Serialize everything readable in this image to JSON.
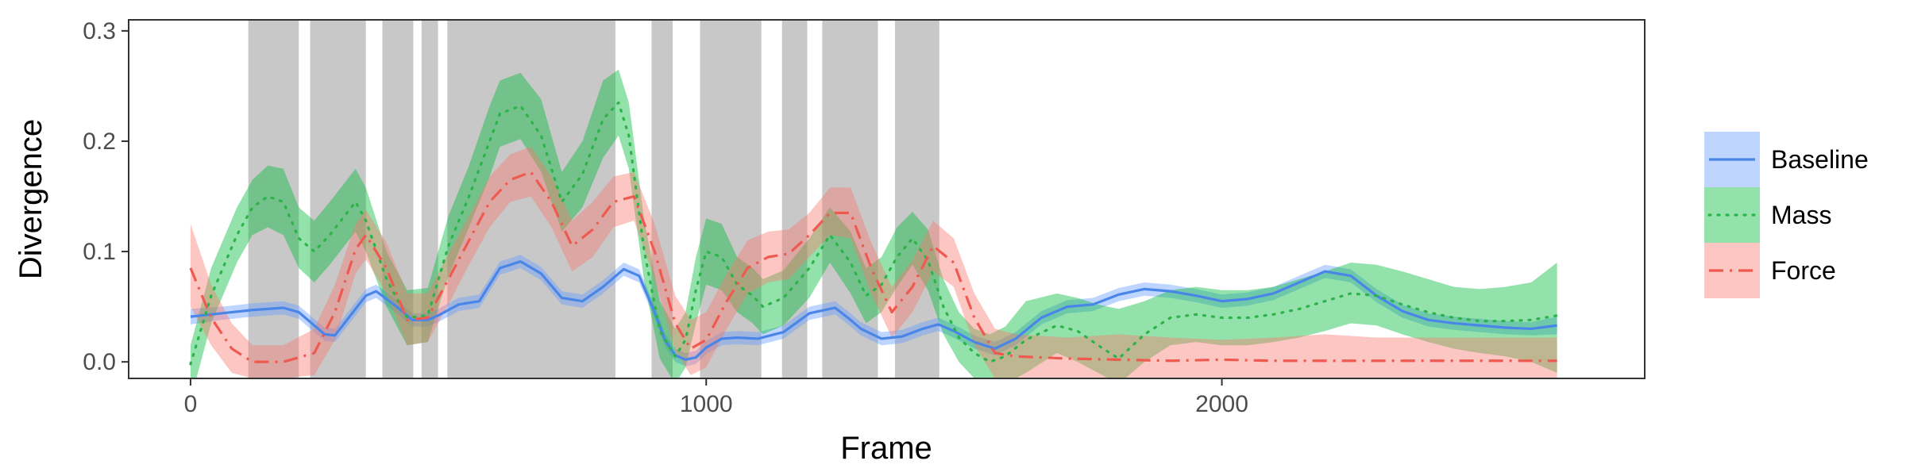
{
  "chart_data": {
    "type": "line",
    "xlabel": "Frame",
    "ylabel": "Divergence",
    "xlim": [
      -120,
      2820
    ],
    "ylim": [
      -0.015,
      0.31
    ],
    "x_ticks": [
      {
        "value": 0,
        "label": "0"
      },
      {
        "value": 1000,
        "label": "1000"
      },
      {
        "value": 2000,
        "label": "2000"
      }
    ],
    "y_ticks": [
      {
        "value": 0.0,
        "label": "0.0"
      },
      {
        "value": 0.1,
        "label": "0.1"
      },
      {
        "value": 0.2,
        "label": "0.2"
      },
      {
        "value": 0.3,
        "label": "0.3"
      }
    ],
    "grid": false,
    "legend_position": "right",
    "shaded_intervals": [
      [
        112,
        210
      ],
      [
        232,
        340
      ],
      [
        372,
        432
      ],
      [
        448,
        480
      ],
      [
        498,
        824
      ],
      [
        894,
        935
      ],
      [
        988,
        1107
      ],
      [
        1147,
        1196
      ],
      [
        1225,
        1333
      ],
      [
        1366,
        1452
      ]
    ],
    "shaded_color": "#c8c8c8",
    "series": [
      {
        "name": "Baseline",
        "color": "#619CFF",
        "line_color": "#4a86e8",
        "dash": "solid",
        "x": [
          0,
          60,
          120,
          180,
          210,
          240,
          260,
          280,
          320,
          340,
          360,
          400,
          430,
          460,
          480,
          520,
          560,
          600,
          640,
          680,
          720,
          760,
          800,
          840,
          870,
          900,
          920,
          940,
          960,
          980,
          1000,
          1030,
          1060,
          1100,
          1150,
          1200,
          1250,
          1280,
          1300,
          1340,
          1380,
          1420,
          1450,
          1480,
          1520,
          1560,
          1600,
          1650,
          1700,
          1750,
          1800,
          1850,
          1900,
          1950,
          2000,
          2050,
          2100,
          2150,
          2200,
          2250,
          2300,
          2350,
          2400,
          2450,
          2500,
          2550,
          2600,
          2650
        ],
        "y": [
          0.041,
          0.044,
          0.047,
          0.049,
          0.045,
          0.033,
          0.025,
          0.024,
          0.048,
          0.06,
          0.064,
          0.05,
          0.038,
          0.038,
          0.042,
          0.052,
          0.055,
          0.085,
          0.091,
          0.08,
          0.058,
          0.055,
          0.068,
          0.084,
          0.078,
          0.045,
          0.02,
          0.006,
          0.002,
          0.004,
          0.013,
          0.021,
          0.022,
          0.021,
          0.027,
          0.044,
          0.049,
          0.038,
          0.03,
          0.021,
          0.023,
          0.03,
          0.034,
          0.028,
          0.018,
          0.012,
          0.021,
          0.04,
          0.05,
          0.052,
          0.061,
          0.066,
          0.064,
          0.06,
          0.055,
          0.057,
          0.062,
          0.072,
          0.082,
          0.078,
          0.06,
          0.046,
          0.038,
          0.035,
          0.033,
          0.031,
          0.03,
          0.033
        ],
        "lower": [
          0.034,
          0.038,
          0.041,
          0.043,
          0.039,
          0.027,
          0.019,
          0.018,
          0.042,
          0.054,
          0.058,
          0.044,
          0.032,
          0.032,
          0.036,
          0.046,
          0.049,
          0.079,
          0.085,
          0.074,
          0.052,
          0.049,
          0.062,
          0.078,
          0.072,
          0.039,
          0.014,
          0.0,
          -0.004,
          -0.002,
          0.007,
          0.015,
          0.016,
          0.015,
          0.021,
          0.038,
          0.043,
          0.032,
          0.024,
          0.015,
          0.017,
          0.024,
          0.028,
          0.022,
          0.012,
          0.006,
          0.015,
          0.034,
          0.044,
          0.046,
          0.055,
          0.06,
          0.058,
          0.054,
          0.049,
          0.051,
          0.056,
          0.066,
          0.076,
          0.072,
          0.054,
          0.04,
          0.032,
          0.029,
          0.027,
          0.025,
          0.024,
          0.025
        ],
        "upper": [
          0.048,
          0.05,
          0.053,
          0.055,
          0.051,
          0.039,
          0.031,
          0.03,
          0.054,
          0.066,
          0.07,
          0.056,
          0.044,
          0.044,
          0.048,
          0.058,
          0.061,
          0.091,
          0.097,
          0.086,
          0.064,
          0.061,
          0.074,
          0.09,
          0.084,
          0.051,
          0.026,
          0.012,
          0.008,
          0.01,
          0.019,
          0.027,
          0.028,
          0.027,
          0.033,
          0.05,
          0.055,
          0.044,
          0.036,
          0.027,
          0.029,
          0.036,
          0.04,
          0.034,
          0.024,
          0.018,
          0.027,
          0.046,
          0.056,
          0.058,
          0.067,
          0.072,
          0.07,
          0.066,
          0.061,
          0.063,
          0.068,
          0.078,
          0.088,
          0.084,
          0.066,
          0.052,
          0.044,
          0.041,
          0.039,
          0.037,
          0.036,
          0.041
        ]
      },
      {
        "name": "Mass",
        "color": "#00BA38",
        "line_color": "#2cb34a",
        "dash": "dotted",
        "x": [
          0,
          40,
          90,
          120,
          150,
          180,
          210,
          240,
          270,
          320,
          340,
          380,
          420,
          460,
          500,
          540,
          580,
          600,
          640,
          680,
          720,
          760,
          800,
          830,
          850,
          880,
          910,
          940,
          960,
          980,
          1000,
          1030,
          1060,
          1090,
          1110,
          1150,
          1200,
          1240,
          1280,
          1310,
          1340,
          1370,
          1400,
          1430,
          1460,
          1490,
          1520,
          1550,
          1580,
          1620,
          1680,
          1720,
          1760,
          1800,
          1850,
          1900,
          1950,
          2000,
          2050,
          2100,
          2150,
          2200,
          2250,
          2300,
          2350,
          2400,
          2450,
          2500,
          2550,
          2600,
          2650
        ],
        "y": [
          -0.002,
          0.06,
          0.115,
          0.14,
          0.15,
          0.145,
          0.112,
          0.1,
          0.115,
          0.145,
          0.128,
          0.075,
          0.04,
          0.042,
          0.105,
          0.15,
          0.2,
          0.225,
          0.232,
          0.205,
          0.145,
          0.17,
          0.22,
          0.235,
          0.205,
          0.1,
          0.028,
          0.005,
          0.02,
          0.065,
          0.1,
          0.095,
          0.07,
          0.06,
          0.05,
          0.058,
          0.085,
          0.115,
          0.09,
          0.06,
          0.07,
          0.095,
          0.112,
          0.092,
          0.05,
          0.022,
          0.008,
          0.0,
          0.005,
          0.02,
          0.033,
          0.028,
          0.015,
          0.003,
          0.025,
          0.04,
          0.043,
          0.04,
          0.04,
          0.043,
          0.048,
          0.055,
          0.062,
          0.06,
          0.052,
          0.045,
          0.04,
          0.037,
          0.037,
          0.038,
          0.042
        ],
        "lower": [
          -0.035,
          0.035,
          0.09,
          0.115,
          0.122,
          0.115,
          0.085,
          0.072,
          0.088,
          0.118,
          0.1,
          0.05,
          0.015,
          0.018,
          0.078,
          0.122,
          0.168,
          0.195,
          0.202,
          0.172,
          0.118,
          0.14,
          0.185,
          0.205,
          0.175,
          0.072,
          0.003,
          -0.02,
          -0.005,
          0.035,
          0.07,
          0.065,
          0.045,
          0.035,
          0.025,
          0.033,
          0.058,
          0.09,
          0.062,
          0.035,
          0.045,
          0.068,
          0.088,
          0.065,
          0.025,
          0.0,
          -0.015,
          -0.025,
          -0.02,
          -0.01,
          0.008,
          0.0,
          -0.01,
          -0.02,
          0.0,
          0.015,
          0.018,
          0.015,
          0.015,
          0.018,
          0.022,
          0.028,
          0.035,
          0.033,
          0.025,
          0.018,
          0.012,
          0.008,
          0.005,
          0.0,
          -0.01
        ],
        "upper": [
          0.015,
          0.085,
          0.14,
          0.165,
          0.178,
          0.175,
          0.14,
          0.128,
          0.145,
          0.175,
          0.158,
          0.1,
          0.065,
          0.067,
          0.132,
          0.178,
          0.232,
          0.255,
          0.262,
          0.238,
          0.172,
          0.2,
          0.255,
          0.265,
          0.235,
          0.128,
          0.055,
          0.03,
          0.045,
          0.095,
          0.13,
          0.125,
          0.095,
          0.085,
          0.075,
          0.083,
          0.112,
          0.14,
          0.118,
          0.085,
          0.095,
          0.122,
          0.136,
          0.12,
          0.075,
          0.045,
          0.03,
          0.025,
          0.032,
          0.055,
          0.062,
          0.058,
          0.052,
          0.048,
          0.055,
          0.065,
          0.068,
          0.065,
          0.065,
          0.068,
          0.075,
          0.082,
          0.09,
          0.088,
          0.082,
          0.075,
          0.068,
          0.066,
          0.068,
          0.072,
          0.09
        ]
      },
      {
        "name": "Force",
        "color": "#F8766D",
        "line_color": "#ef5a50",
        "dash": "dashdot",
        "x": [
          0,
          40,
          80,
          120,
          180,
          240,
          280,
          320,
          340,
          380,
          420,
          460,
          500,
          540,
          580,
          620,
          660,
          700,
          740,
          780,
          820,
          860,
          900,
          940,
          970,
          1000,
          1040,
          1080,
          1120,
          1160,
          1200,
          1240,
          1280,
          1320,
          1360,
          1400,
          1440,
          1480,
          1520,
          1560,
          1600,
          1700,
          1800,
          1900,
          2000,
          2100,
          2200,
          2300,
          2400,
          2500,
          2600,
          2650
        ],
        "y": [
          0.085,
          0.04,
          0.012,
          0.0,
          0.0,
          0.008,
          0.045,
          0.102,
          0.115,
          0.085,
          0.038,
          0.04,
          0.075,
          0.11,
          0.145,
          0.165,
          0.172,
          0.145,
          0.105,
          0.12,
          0.145,
          0.15,
          0.1,
          0.035,
          0.012,
          0.02,
          0.055,
          0.085,
          0.095,
          0.098,
          0.115,
          0.135,
          0.135,
          0.085,
          0.045,
          0.068,
          0.105,
          0.09,
          0.04,
          0.008,
          0.005,
          0.003,
          0.002,
          0.001,
          0.002,
          0.001,
          0.001,
          0.001,
          0.001,
          0.001,
          0.001,
          0.001
        ],
        "lower": [
          0.05,
          0.015,
          -0.01,
          -0.015,
          -0.015,
          -0.012,
          0.02,
          0.08,
          0.093,
          0.062,
          0.015,
          0.018,
          0.052,
          0.088,
          0.122,
          0.145,
          0.15,
          0.122,
          0.082,
          0.095,
          0.122,
          0.128,
          0.075,
          0.01,
          -0.012,
          -0.005,
          0.03,
          0.062,
          0.072,
          0.075,
          0.095,
          0.115,
          0.112,
          0.062,
          0.022,
          0.045,
          0.082,
          0.068,
          0.015,
          -0.015,
          -0.015,
          -0.015,
          -0.015,
          -0.015,
          -0.015,
          -0.015,
          -0.015,
          -0.015,
          -0.015,
          -0.015,
          -0.015,
          -0.015
        ],
        "upper": [
          0.125,
          0.07,
          0.035,
          0.015,
          0.015,
          0.03,
          0.07,
          0.125,
          0.138,
          0.108,
          0.062,
          0.062,
          0.098,
          0.132,
          0.168,
          0.188,
          0.195,
          0.168,
          0.128,
          0.145,
          0.168,
          0.172,
          0.125,
          0.06,
          0.038,
          0.045,
          0.08,
          0.11,
          0.118,
          0.12,
          0.135,
          0.158,
          0.158,
          0.108,
          0.068,
          0.092,
          0.128,
          0.112,
          0.062,
          0.03,
          0.025,
          0.022,
          0.025,
          0.022,
          0.02,
          0.022,
          0.025,
          0.022,
          0.022,
          0.022,
          0.022,
          0.022
        ]
      }
    ]
  }
}
